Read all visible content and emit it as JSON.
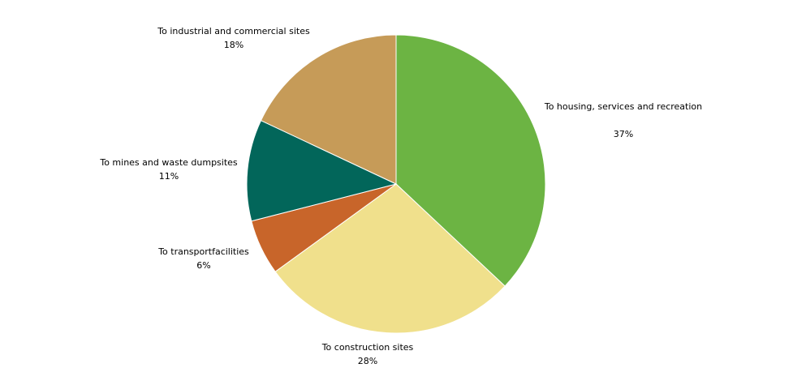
{
  "chart_data": {
    "type": "pie",
    "title": "",
    "start_angle_deg": 0,
    "direction": "clockwise",
    "slices": [
      {
        "label": "To housing, services and recreation",
        "value": 37,
        "value_label": "37%",
        "color": "#6cb443"
      },
      {
        "label": "To construction sites",
        "value": 28,
        "value_label": "28%",
        "color": "#f0e08c"
      },
      {
        "label": "To transportfacilities",
        "value": 6,
        "value_label": "6%",
        "color": "#c8652a"
      },
      {
        "label": "To mines and waste dumpsites",
        "value": 11,
        "value_label": "11%",
        "color": "#02665a"
      },
      {
        "label": "To industrial and commercial sites",
        "value": 18,
        "value_label": "18%",
        "color": "#c69b58"
      }
    ],
    "legend": "none"
  }
}
